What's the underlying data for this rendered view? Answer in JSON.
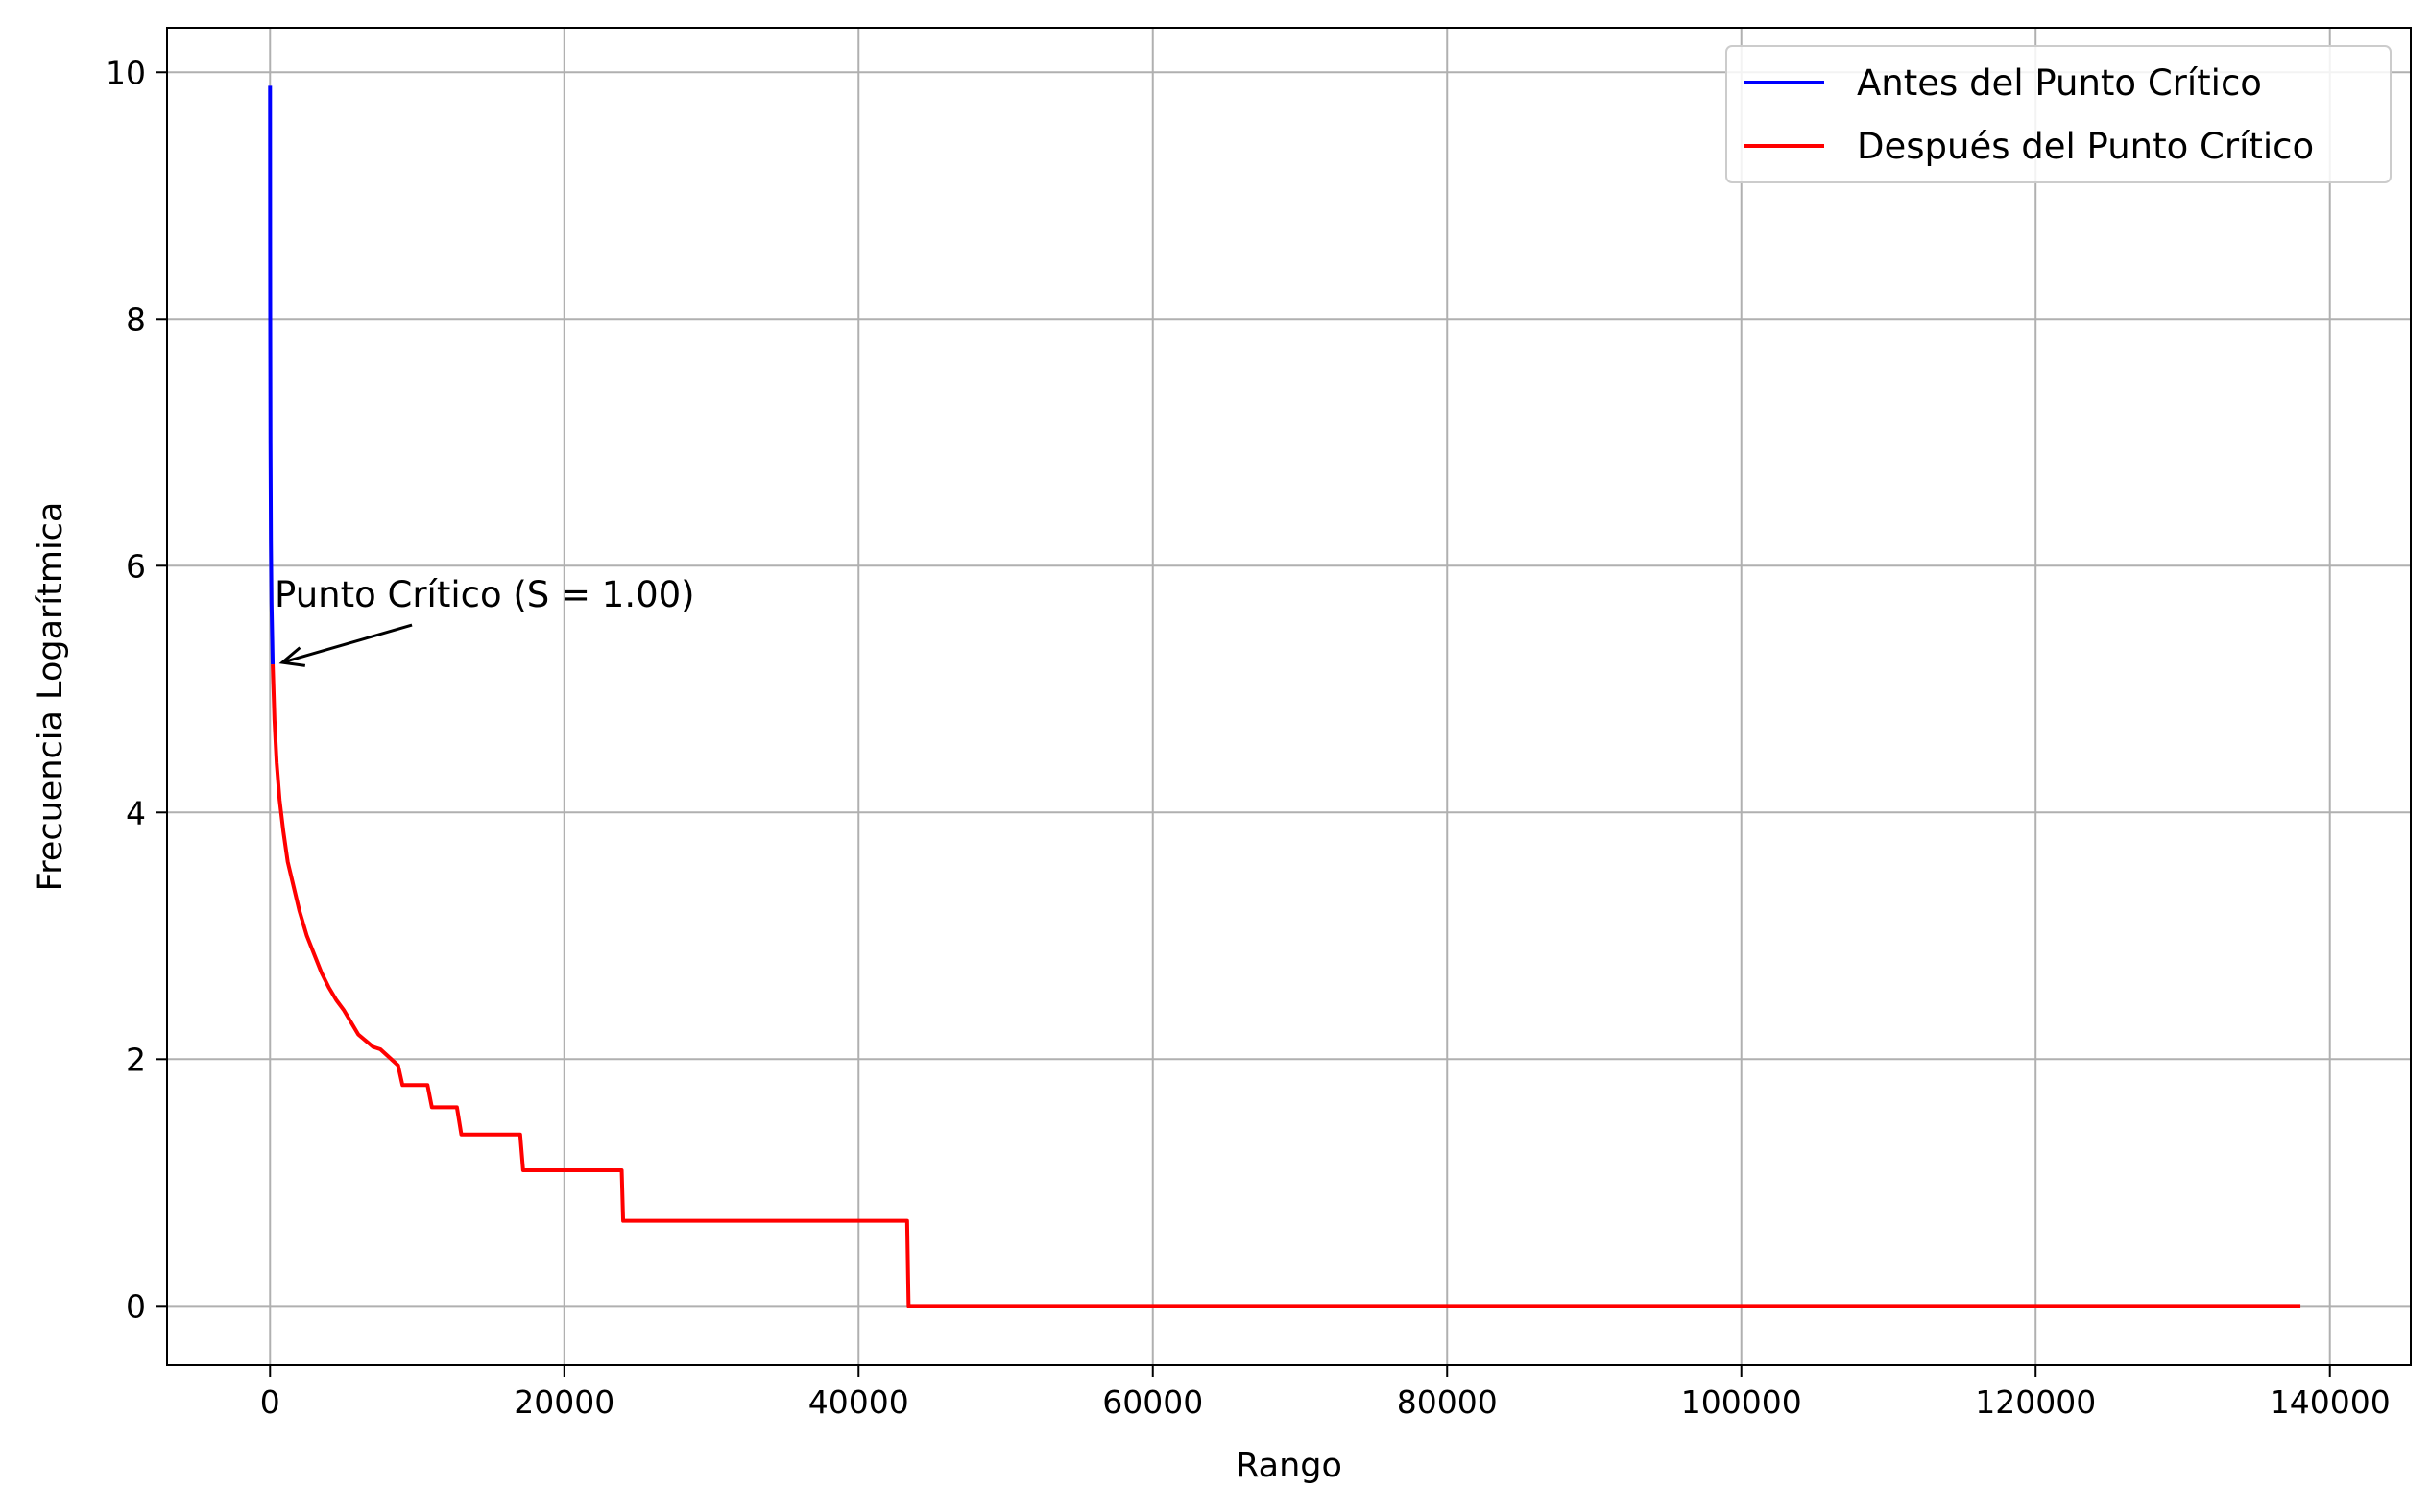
{
  "chart_data": {
    "type": "line",
    "title": "",
    "xlabel": "Rango",
    "ylabel": "Frecuencia Logarítmica",
    "xlim": [
      -7000,
      145500
    ],
    "ylim": [
      -0.48,
      10.36
    ],
    "xticks": [
      0,
      20000,
      40000,
      60000,
      80000,
      100000,
      120000,
      140000
    ],
    "xtick_labels": [
      "0",
      "20000",
      "40000",
      "60000",
      "80000",
      "100000",
      "120000",
      "140000"
    ],
    "yticks": [
      0,
      2,
      4,
      6,
      8,
      10
    ],
    "ytick_labels": [
      "0",
      "2",
      "4",
      "6",
      "8",
      "10"
    ],
    "grid": true,
    "legend": "top-right",
    "series": [
      {
        "name": "Antes del Punto Crítico",
        "color": "#0000ff",
        "x": [
          1,
          3,
          8,
          15,
          30,
          60,
          100,
          150,
          181
        ],
        "y": [
          9.89,
          9.4,
          8.6,
          7.9,
          7.0,
          6.2,
          5.7,
          5.4,
          5.2
        ]
      },
      {
        "name": "Después del Punto Crítico",
        "color": "#ff0000",
        "x": [
          181,
          300,
          450,
          650,
          900,
          1200,
          1600,
          2000,
          2500,
          3000,
          3500,
          4000,
          4500,
          5000,
          5500,
          6000,
          7000,
          7500,
          8700,
          9000,
          10700,
          11000,
          12700,
          13000,
          17000,
          17200,
          23900,
          24000,
          43300,
          43400,
          138000
        ],
        "y": [
          5.2,
          4.75,
          4.4,
          4.1,
          3.85,
          3.6,
          3.4,
          3.2,
          3.0,
          2.85,
          2.7,
          2.58,
          2.48,
          2.4,
          2.3,
          2.2,
          2.1,
          2.08,
          1.95,
          1.79,
          1.79,
          1.61,
          1.61,
          1.39,
          1.39,
          1.1,
          1.1,
          0.69,
          0.69,
          0.0,
          0.0
        ]
      }
    ],
    "annotation": {
      "text": "Punto Crítico (S = 1.00)",
      "x": 181,
      "y": 5.2
    }
  }
}
